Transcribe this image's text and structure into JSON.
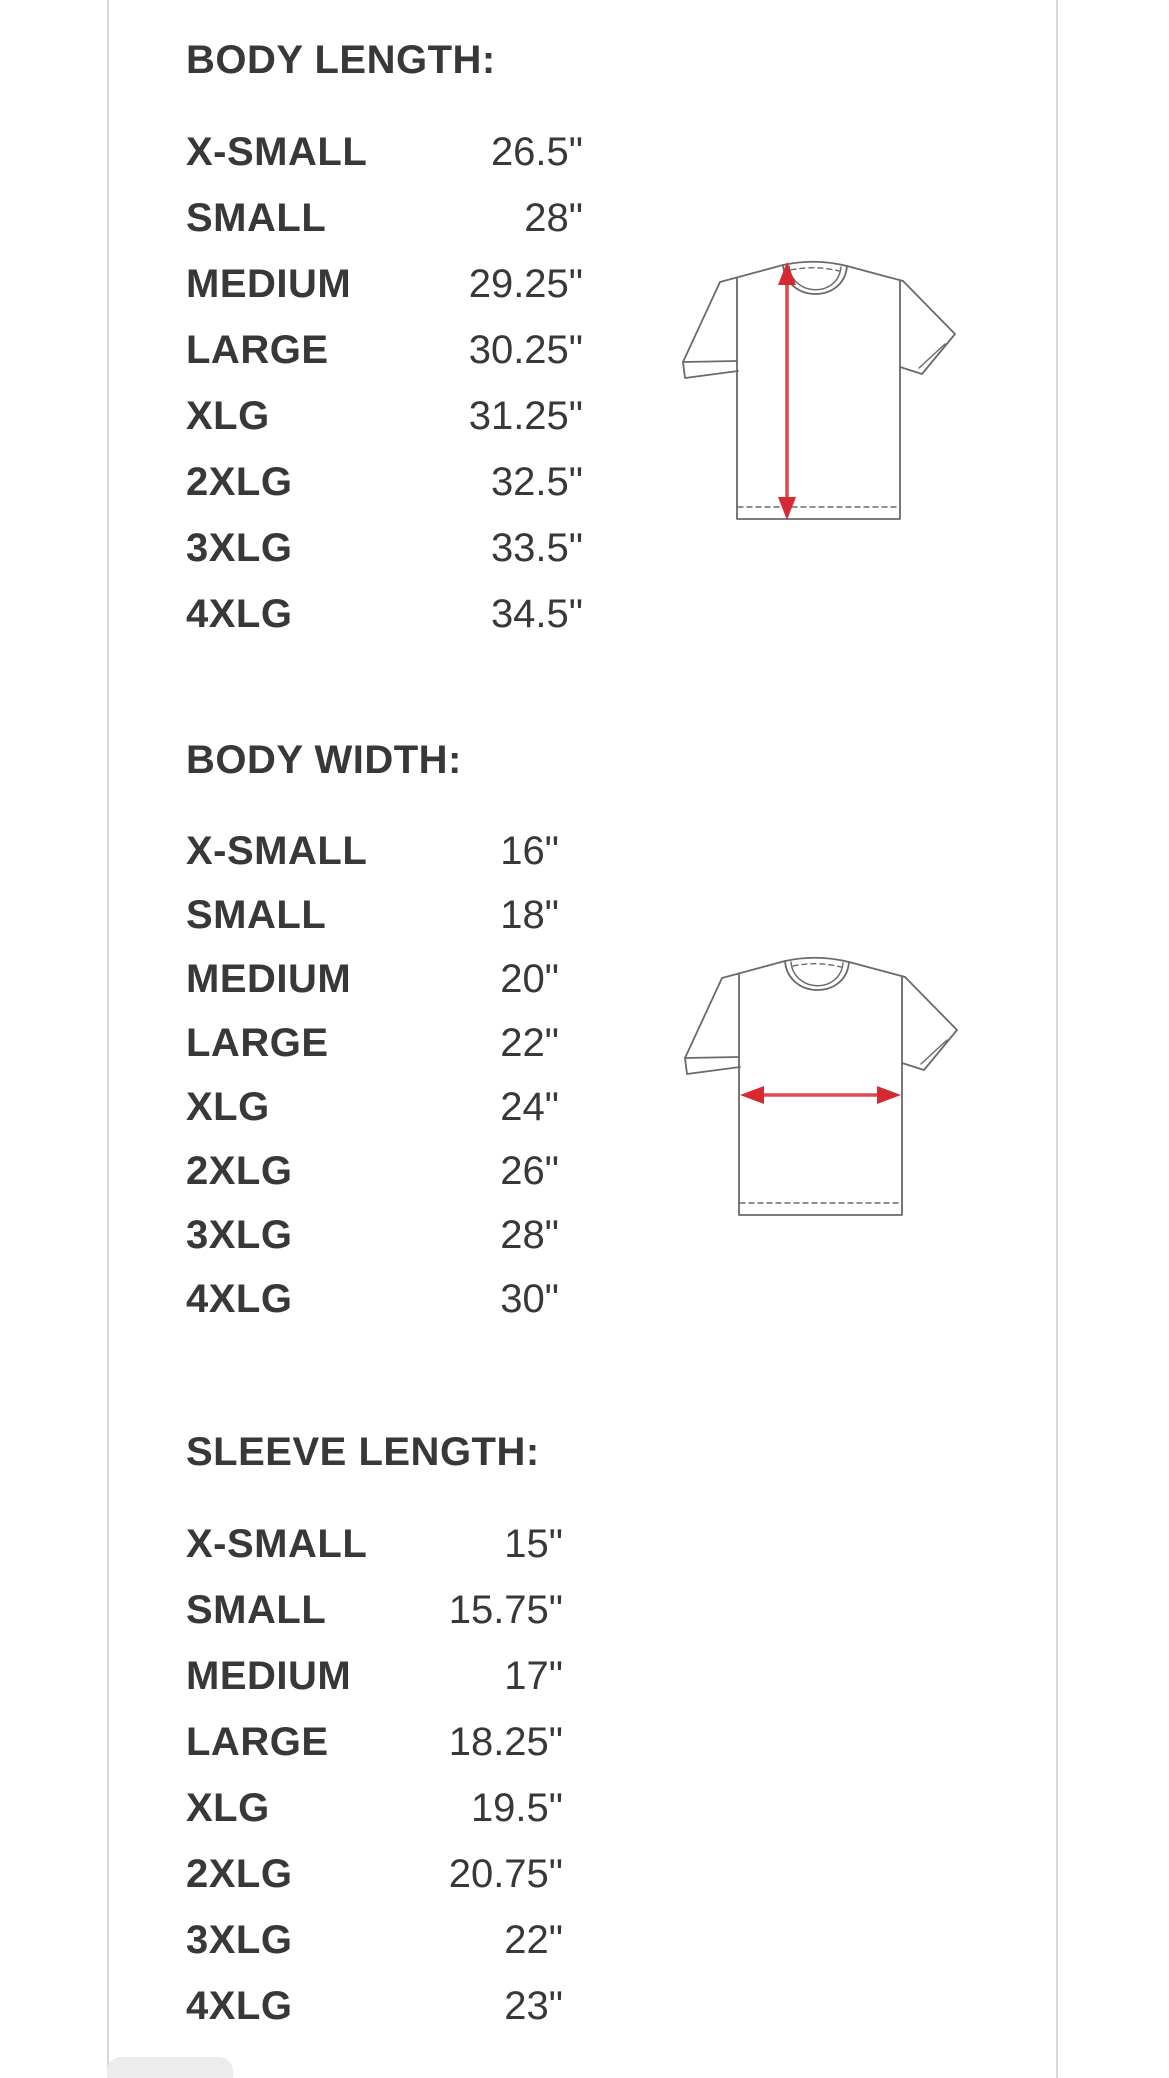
{
  "sections": [
    {
      "heading": "BODY LENGTH:",
      "rows": [
        {
          "size": "X-SMALL",
          "value": "26.5\""
        },
        {
          "size": "SMALL",
          "value": "28\""
        },
        {
          "size": "MEDIUM",
          "value": "29.25\""
        },
        {
          "size": "LARGE",
          "value": "30.25\""
        },
        {
          "size": "XLG",
          "value": "31.25\""
        },
        {
          "size": "2XLG",
          "value": "32.5\""
        },
        {
          "size": "3XLG",
          "value": "33.5\""
        },
        {
          "size": "4XLG",
          "value": "34.5\""
        }
      ],
      "diagram_icon": "tshirt-vertical-length-arrow"
    },
    {
      "heading": "BODY WIDTH:",
      "rows": [
        {
          "size": "X-SMALL",
          "value": "16\""
        },
        {
          "size": "SMALL",
          "value": "18\""
        },
        {
          "size": "MEDIUM",
          "value": "20\""
        },
        {
          "size": "LARGE",
          "value": "22\""
        },
        {
          "size": "XLG",
          "value": "24\""
        },
        {
          "size": "2XLG",
          "value": "26\""
        },
        {
          "size": "3XLG",
          "value": "28\""
        },
        {
          "size": "4XLG",
          "value": "30\""
        }
      ],
      "diagram_icon": "tshirt-horizontal-width-arrow"
    },
    {
      "heading": "SLEEVE LENGTH:",
      "rows": [
        {
          "size": "X-SMALL",
          "value": "15\""
        },
        {
          "size": "SMALL",
          "value": "15.75\""
        },
        {
          "size": "MEDIUM",
          "value": "17\""
        },
        {
          "size": "LARGE",
          "value": "18.25\""
        },
        {
          "size": "XLG",
          "value": "19.5\""
        },
        {
          "size": "2XLG",
          "value": "20.75\""
        },
        {
          "size": "3XLG",
          "value": "22\""
        },
        {
          "size": "4XLG",
          "value": "23\""
        }
      ],
      "diagram_icon": "none"
    }
  ],
  "colors": {
    "text": "#383838",
    "border": "#d9d9d9",
    "accent_red": "#d62a32",
    "outline_gray": "#6a6a6a",
    "overlay_gray": "#ececec"
  }
}
